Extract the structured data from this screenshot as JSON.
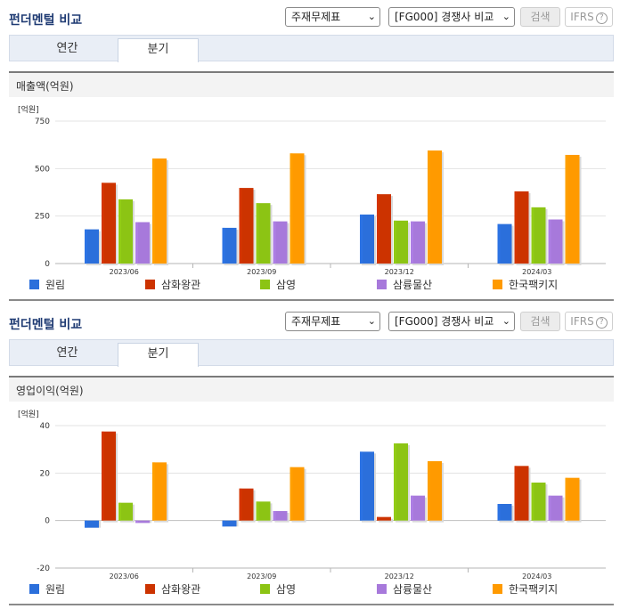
{
  "colors": {
    "원림": "#2b6fdb",
    "삼화왕관": "#cc3300",
    "삼영": "#8cc414",
    "삼륭물산": "#a779db",
    "한국팩키지": "#ff9a00"
  },
  "panels": [
    {
      "title": "펀더멘털 비교",
      "select1": "주재무제표",
      "select2": "[FG000] 경쟁사 비교",
      "search_label": "검색",
      "ifrs_label": "IFRS",
      "ifrs_help": "?",
      "tab1": "연간",
      "tab2": "분기",
      "chart_title": "매출액(억원)",
      "unit": "[억원]",
      "legend": [
        "원림",
        "삼화왕관",
        "삼영",
        "삼륭물산",
        "한국팩키지"
      ]
    },
    {
      "title": "펀더멘털 비교",
      "select1": "주재무제표",
      "select2": "[FG000] 경쟁사 비교",
      "search_label": "검색",
      "ifrs_label": "IFRS",
      "ifrs_help": "?",
      "tab1": "연간",
      "tab2": "분기",
      "chart_title": "영업이익(억원)",
      "unit": "[억원]",
      "legend": [
        "원림",
        "삼화왕관",
        "삼영",
        "삼륭물산",
        "한국팩키지"
      ]
    }
  ],
  "chart_data": [
    {
      "type": "bar",
      "title": "매출액(억원)",
      "ylabel": "[억원]",
      "categories": [
        "2023/06",
        "2023/09",
        "2023/12",
        "2024/03"
      ],
      "ylim": [
        0,
        750
      ],
      "yticks": [
        0,
        250,
        500,
        750
      ],
      "legend_position": "bottom",
      "series": [
        {
          "name": "원림",
          "values": [
            180,
            188,
            258,
            208
          ]
        },
        {
          "name": "삼화왕관",
          "values": [
            425,
            398,
            365,
            380
          ]
        },
        {
          "name": "삼영",
          "values": [
            338,
            318,
            226,
            296
          ]
        },
        {
          "name": "삼륭물산",
          "values": [
            218,
            222,
            222,
            232
          ]
        },
        {
          "name": "한국팩키지",
          "values": [
            553,
            580,
            595,
            572
          ]
        }
      ]
    },
    {
      "type": "bar",
      "title": "영업이익(억원)",
      "ylabel": "[억원]",
      "categories": [
        "2023/06",
        "2023/09",
        "2023/12",
        "2024/03"
      ],
      "ylim": [
        -20,
        40
      ],
      "yticks": [
        -20,
        0,
        20,
        40
      ],
      "legend_position": "bottom",
      "series": [
        {
          "name": "원림",
          "values": [
            -3,
            -2.5,
            29,
            7
          ]
        },
        {
          "name": "삼화왕관",
          "values": [
            37.5,
            13.5,
            1.5,
            23
          ]
        },
        {
          "name": "삼영",
          "values": [
            7.5,
            8,
            32.5,
            16
          ]
        },
        {
          "name": "삼륭물산",
          "values": [
            -1,
            4,
            10.5,
            10.5
          ]
        },
        {
          "name": "한국팩키지",
          "values": [
            24.5,
            22.5,
            25,
            18
          ]
        }
      ]
    }
  ]
}
